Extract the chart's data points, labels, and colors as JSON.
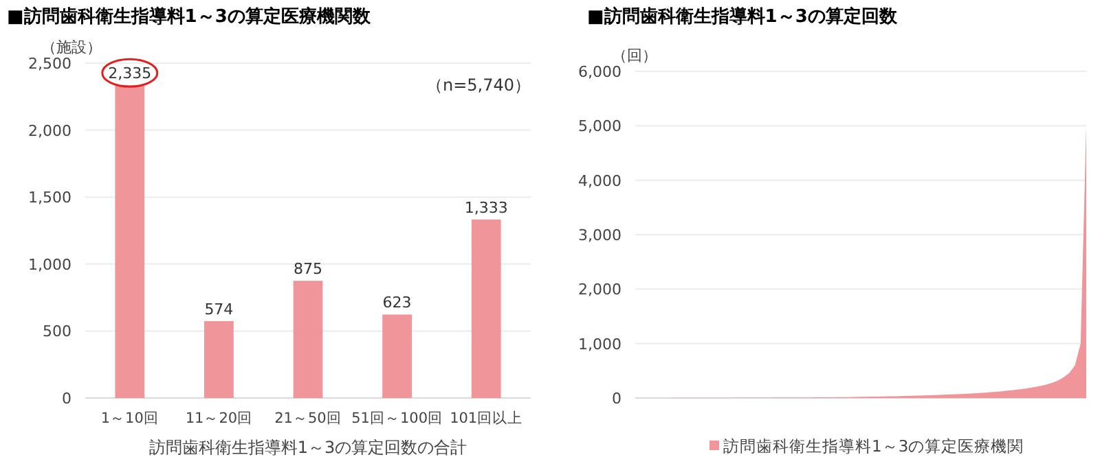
{
  "chart_data": [
    {
      "type": "bar",
      "title": "■訪問歯科衛生指導料1～3の算定医療機関数",
      "ylabel": "（施設）",
      "xlabel": "訪問歯科衛生指導料1～3の算定回数の合計",
      "annotations": [
        "（n=5,740）"
      ],
      "categories": [
        "1～10回",
        "11～20回",
        "21～50回",
        "51回～100回",
        "101回以上"
      ],
      "values": [
        2335,
        574,
        875,
        623,
        1333
      ],
      "color": "#f0959a",
      "value_labels": [
        "2,335",
        "574",
        "875",
        "623",
        "1,333"
      ],
      "ylim": [
        0,
        2500
      ],
      "yticks": [
        {
          "value": 0,
          "label": "0"
        },
        {
          "value": 500,
          "label": "500"
        },
        {
          "value": 1000,
          "label": "1,000"
        },
        {
          "value": 1500,
          "label": "1,500"
        },
        {
          "value": 2000,
          "label": "2,000"
        },
        {
          "value": 2500,
          "label": "2,500"
        }
      ],
      "grid": "y"
    },
    {
      "type": "area",
      "title": "■訪問歯科衛生指導料1～3の算定回数",
      "ylabel": "（回）",
      "categories": [
        null,
        null,
        null,
        null,
        null,
        null,
        null,
        null,
        null,
        null,
        null,
        null,
        null,
        null,
        null,
        null,
        null,
        null,
        null,
        null,
        null,
        null,
        null,
        null,
        null,
        null,
        null,
        null,
        null,
        null,
        null,
        null,
        null,
        null,
        null,
        null,
        null,
        null,
        null,
        null,
        null,
        null,
        null,
        null,
        null,
        null,
        null,
        null,
        null,
        null,
        null,
        null,
        null,
        null,
        null,
        null,
        null,
        null,
        null,
        null,
        null,
        null,
        null,
        null,
        null,
        null,
        null,
        null,
        null,
        null,
        null,
        null,
        null,
        null,
        null,
        null,
        null,
        null,
        null,
        null,
        null
      ],
      "series": [
        {
          "name": "訪問歯科衛生指導料1～3の算定医療機関",
          "color": "#f0959a",
          "values": [
            0,
            0,
            0,
            1,
            1,
            1,
            1,
            2,
            2,
            2,
            2,
            3,
            3,
            3,
            4,
            4,
            4,
            4,
            5,
            5,
            5,
            6,
            6,
            7,
            7,
            8,
            8,
            9,
            9,
            10,
            10,
            11,
            12,
            13,
            14,
            14,
            15,
            16,
            17,
            19,
            21,
            22,
            24,
            26,
            28,
            30,
            32,
            34,
            37,
            40,
            43,
            46,
            50,
            54,
            58,
            62,
            66,
            70,
            75,
            80,
            86,
            92,
            99,
            106,
            115,
            124,
            134,
            145,
            157,
            170,
            185,
            205,
            225,
            250,
            280,
            320,
            380,
            460,
            600,
            1000,
            5000
          ]
        }
      ],
      "ylim": [
        0,
        6000
      ],
      "yticks": [
        {
          "value": 0,
          "label": "0"
        },
        {
          "value": 1000,
          "label": "1,000"
        },
        {
          "value": 2000,
          "label": "2,000"
        },
        {
          "value": 3000,
          "label": "3,000"
        },
        {
          "value": 4000,
          "label": "4,000"
        },
        {
          "value": 5000,
          "label": "5,000"
        },
        {
          "value": 6000,
          "label": "6,000"
        }
      ],
      "grid": "y",
      "legend": "bottom",
      "tick_labels": "y"
    }
  ]
}
